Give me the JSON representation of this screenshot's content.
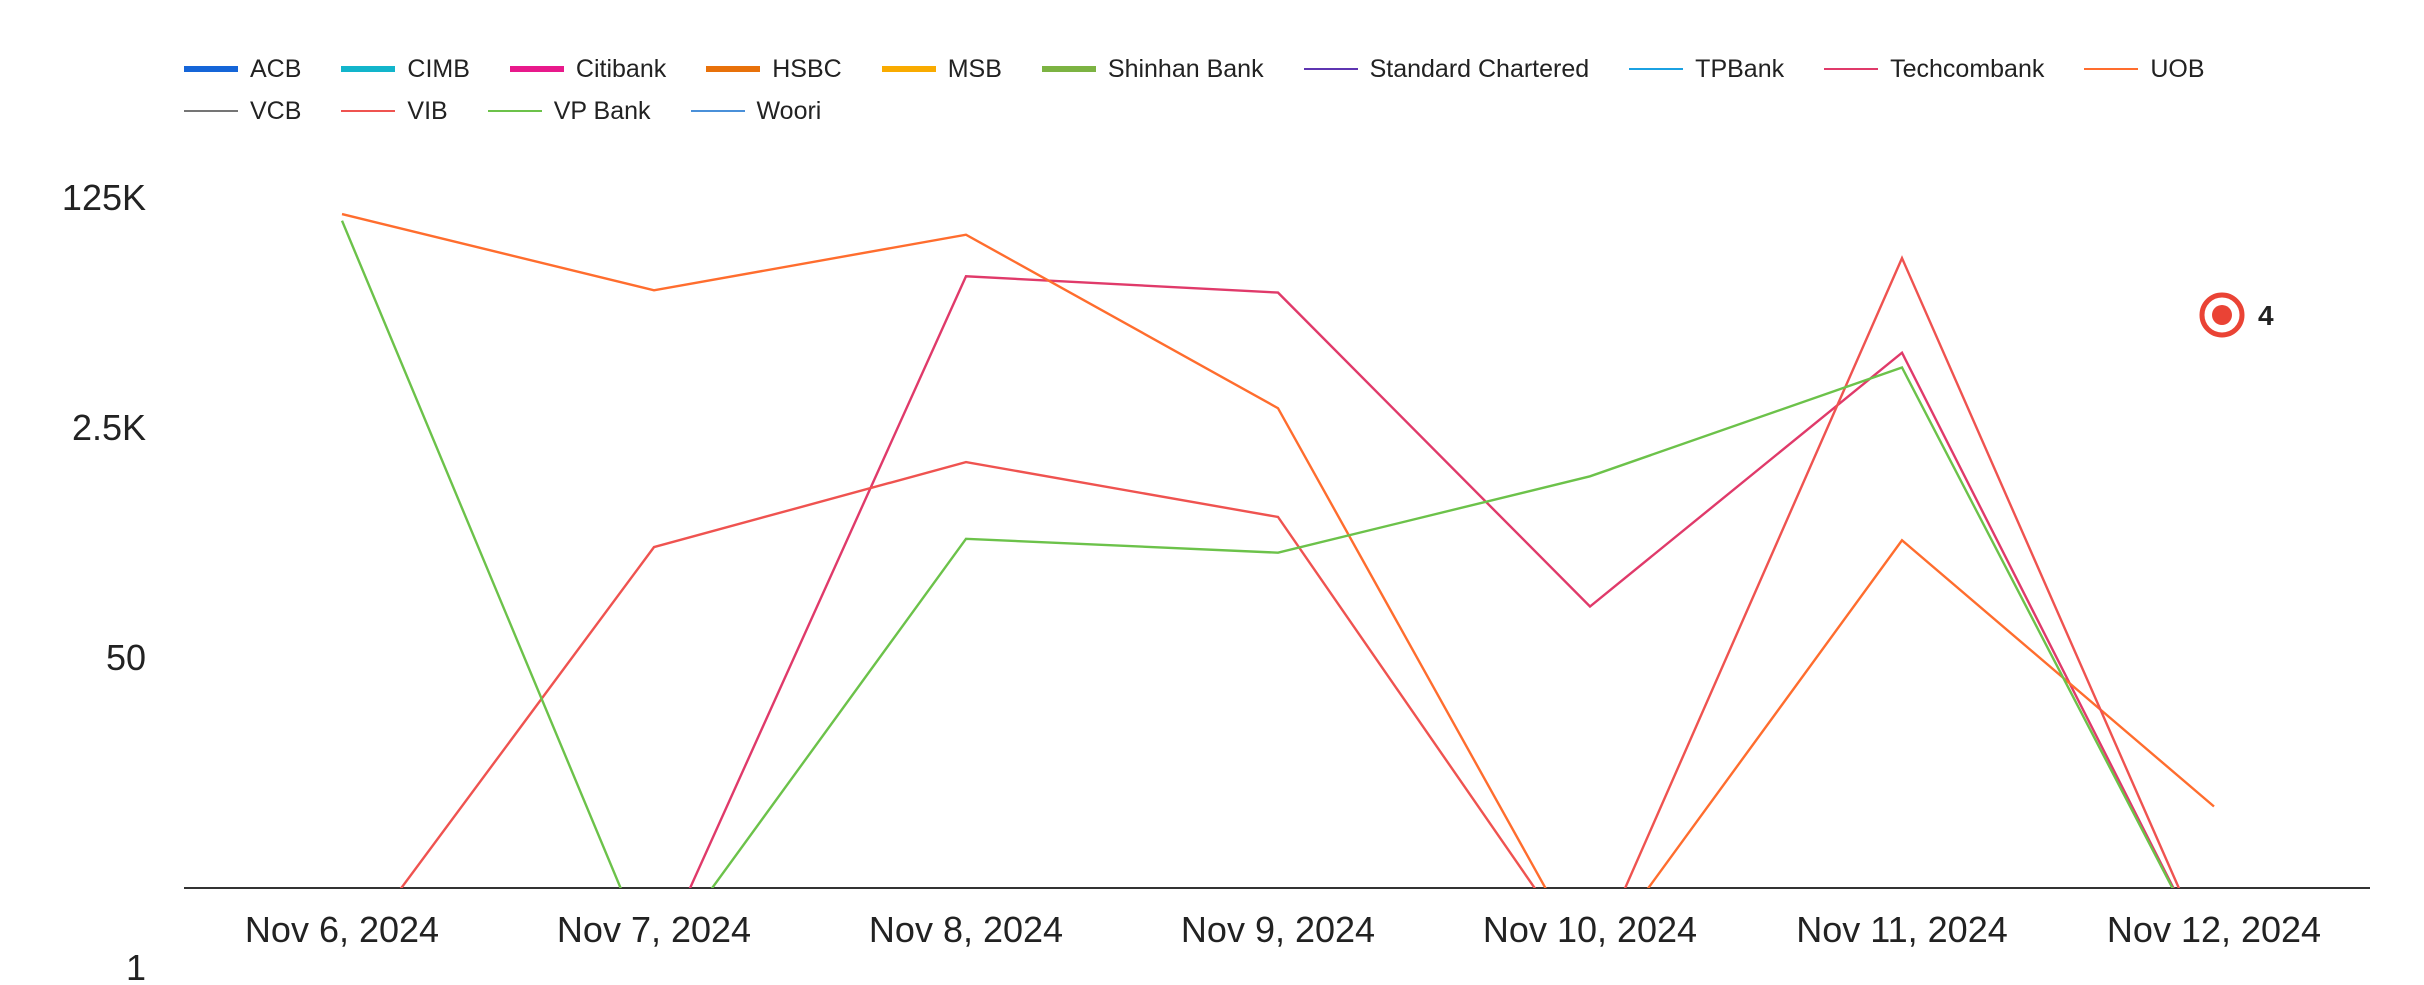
{
  "chart_data": {
    "type": "line",
    "title": "",
    "xlabel": "",
    "ylabel": "",
    "y_scale": "log",
    "y_ticks": [
      1,
      50,
      2500,
      125000
    ],
    "y_tick_labels": [
      "1",
      "50",
      "2.5K",
      "125K"
    ],
    "categories": [
      "Nov 6, 2024",
      "Nov 7, 2024",
      "Nov 8, 2024",
      "Nov 9, 2024",
      "Nov 10, 2024",
      "Nov 11, 2024",
      "Nov 12, 2024"
    ],
    "legend_position": "top",
    "grid": false,
    "series": [
      {
        "name": "ACB",
        "color": "#1565d8",
        "style": "thick",
        "values": [
          null,
          null,
          null,
          null,
          null,
          null,
          null
        ]
      },
      {
        "name": "CIMB",
        "color": "#12b5cb",
        "style": "thick",
        "values": [
          null,
          null,
          null,
          null,
          null,
          null,
          null
        ]
      },
      {
        "name": "Citibank",
        "color": "#e8198b",
        "style": "thick",
        "values": [
          null,
          null,
          null,
          null,
          null,
          null,
          null
        ]
      },
      {
        "name": "HSBC",
        "color": "#e8710a",
        "style": "thick",
        "values": [
          null,
          null,
          null,
          null,
          null,
          null,
          null
        ]
      },
      {
        "name": "MSB",
        "color": "#f9ab00",
        "style": "thick",
        "values": [
          null,
          null,
          null,
          null,
          null,
          null,
          null
        ]
      },
      {
        "name": "Shinhan Bank",
        "color": "#7cb342",
        "style": "thick",
        "values": [
          null,
          null,
          null,
          null,
          null,
          null,
          null
        ]
      },
      {
        "name": "Standard Chartered",
        "color": "#5e35b1",
        "style": "thin",
        "values": [
          null,
          null,
          null,
          null,
          null,
          null,
          null
        ]
      },
      {
        "name": "TPBank",
        "color": "#1ba1e2",
        "style": "thin",
        "values": [
          null,
          null,
          null,
          null,
          null,
          null,
          null
        ]
      },
      {
        "name": "Techcombank",
        "color": "#e03a6a",
        "style": "thin",
        "values": [
          0,
          0,
          33000,
          25000,
          120,
          9000,
          0
        ]
      },
      {
        "name": "UOB",
        "color": "#ff6d2e",
        "style": "thin",
        "values": [
          95000,
          26000,
          67000,
          3500,
          0,
          370,
          4
        ]
      },
      {
        "name": "VCB",
        "color": "#757575",
        "style": "thin",
        "values": [
          null,
          null,
          null,
          null,
          null,
          null,
          null
        ]
      },
      {
        "name": "VIB",
        "color": "#ef5350",
        "style": "thin",
        "values": [
          0,
          330,
          1400,
          550,
          0,
          45000,
          0
        ]
      },
      {
        "name": "VP Bank",
        "color": "#6cc24a",
        "style": "thin",
        "values": [
          85000,
          0,
          380,
          300,
          1100,
          7000,
          0
        ]
      },
      {
        "name": "Woori",
        "color": "#4a90d9",
        "style": "thin",
        "values": [
          null,
          null,
          null,
          null,
          null,
          null,
          null
        ]
      }
    ],
    "annotation": {
      "label": "4",
      "series": "UOB",
      "category": "Nov 12, 2024"
    }
  }
}
